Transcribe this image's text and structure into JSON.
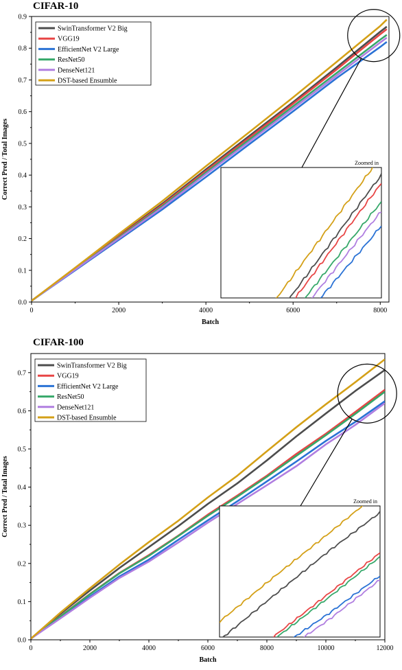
{
  "chart_data": [
    {
      "type": "line",
      "title": "CIFAR-10",
      "xlabel": "Batch",
      "ylabel": "Correct Pred / Total Images",
      "xlim": [
        0,
        8200
      ],
      "ylim": [
        0,
        0.9
      ],
      "xticks": [
        0,
        2000,
        4000,
        6000,
        8000
      ],
      "xtick_labels": [
        "0",
        "2000",
        "4000",
        "6000",
        "8000"
      ],
      "yticks": [
        0.0,
        0.1,
        0.2,
        0.3,
        0.4,
        0.5,
        0.6,
        0.7,
        0.8,
        0.9
      ],
      "ytick_labels": [
        "0.0",
        "0.1",
        "0.2",
        "0.3",
        "0.4",
        "0.5",
        "0.6",
        "0.7",
        "0.8",
        "0.9"
      ],
      "legend_position": "top-left",
      "inset_label": "Zoomed in",
      "x": [
        0,
        1000,
        2000,
        3000,
        4000,
        5000,
        6000,
        7000,
        8000,
        8150
      ],
      "series": [
        {
          "name": "SwinTransformer V2 Big",
          "color": "#4d4d4d",
          "values": [
            0.004,
            0.105,
            0.208,
            0.31,
            0.418,
            0.524,
            0.63,
            0.74,
            0.852,
            0.868
          ]
        },
        {
          "name": "VGG19",
          "color": "#e84545",
          "values": [
            0.004,
            0.104,
            0.206,
            0.306,
            0.413,
            0.518,
            0.625,
            0.733,
            0.844,
            0.86
          ]
        },
        {
          "name": "EfficientNet V2 Large",
          "color": "#2a72d5",
          "values": [
            0.004,
            0.1,
            0.196,
            0.292,
            0.394,
            0.498,
            0.601,
            0.706,
            0.804,
            0.82
          ]
        },
        {
          "name": "ResNet50",
          "color": "#36a86a",
          "values": [
            0.004,
            0.103,
            0.203,
            0.302,
            0.408,
            0.512,
            0.617,
            0.722,
            0.827,
            0.842
          ]
        },
        {
          "name": "DenseNet121",
          "color": "#b07ee0",
          "values": [
            0.004,
            0.102,
            0.2,
            0.298,
            0.403,
            0.506,
            0.61,
            0.714,
            0.818,
            0.833
          ]
        },
        {
          "name": "DST-based Ensumble",
          "color": "#d4a017",
          "values": [
            0.004,
            0.108,
            0.214,
            0.318,
            0.428,
            0.536,
            0.645,
            0.757,
            0.87,
            0.89
          ]
        }
      ]
    },
    {
      "type": "line",
      "title": "CIFAR-100",
      "xlabel": "Batch",
      "ylabel": "Correct Pred / Total Images",
      "xlim": [
        0,
        12000
      ],
      "ylim": [
        0,
        0.75
      ],
      "xticks": [
        0,
        2000,
        4000,
        6000,
        8000,
        10000,
        12000
      ],
      "xtick_labels": [
        "0",
        "2000",
        "4000",
        "6000",
        "8000",
        "10000",
        "12000"
      ],
      "yticks": [
        0.0,
        0.1,
        0.2,
        0.3,
        0.4,
        0.5,
        0.6,
        0.7
      ],
      "ytick_labels": [
        "0.0",
        "0.1",
        "0.2",
        "0.3",
        "0.4",
        "0.5",
        "0.6",
        "0.7"
      ],
      "legend_position": "top-left",
      "inset_label": "Zoomed in",
      "x": [
        0,
        1000,
        2000,
        3000,
        4000,
        5000,
        6000,
        7000,
        8000,
        9000,
        10000,
        11000,
        12000
      ],
      "series": [
        {
          "name": "SwinTransformer V2 Big",
          "color": "#4d4d4d",
          "values": [
            0.003,
            0.068,
            0.129,
            0.188,
            0.243,
            0.298,
            0.356,
            0.41,
            0.47,
            0.533,
            0.593,
            0.652,
            0.707
          ]
        },
        {
          "name": "VGG19",
          "color": "#e84545",
          "values": [
            0.003,
            0.062,
            0.12,
            0.175,
            0.222,
            0.273,
            0.328,
            0.378,
            0.43,
            0.487,
            0.54,
            0.597,
            0.655
          ]
        },
        {
          "name": "EfficientNet V2 Large",
          "color": "#2a72d5",
          "values": [
            0.003,
            0.058,
            0.113,
            0.166,
            0.21,
            0.262,
            0.313,
            0.363,
            0.415,
            0.467,
            0.521,
            0.571,
            0.625
          ]
        },
        {
          "name": "ResNet50",
          "color": "#36a86a",
          "values": [
            0.003,
            0.061,
            0.119,
            0.174,
            0.22,
            0.272,
            0.325,
            0.375,
            0.427,
            0.482,
            0.536,
            0.592,
            0.65
          ]
        },
        {
          "name": "DenseNet121",
          "color": "#b07ee0",
          "values": [
            0.003,
            0.056,
            0.11,
            0.162,
            0.205,
            0.255,
            0.307,
            0.356,
            0.405,
            0.455,
            0.512,
            0.563,
            0.62
          ]
        },
        {
          "name": "DST-based Ensumble",
          "color": "#d4a017",
          "values": [
            0.003,
            0.071,
            0.135,
            0.197,
            0.256,
            0.312,
            0.373,
            0.43,
            0.494,
            0.557,
            0.617,
            0.675,
            0.735
          ]
        }
      ]
    }
  ]
}
